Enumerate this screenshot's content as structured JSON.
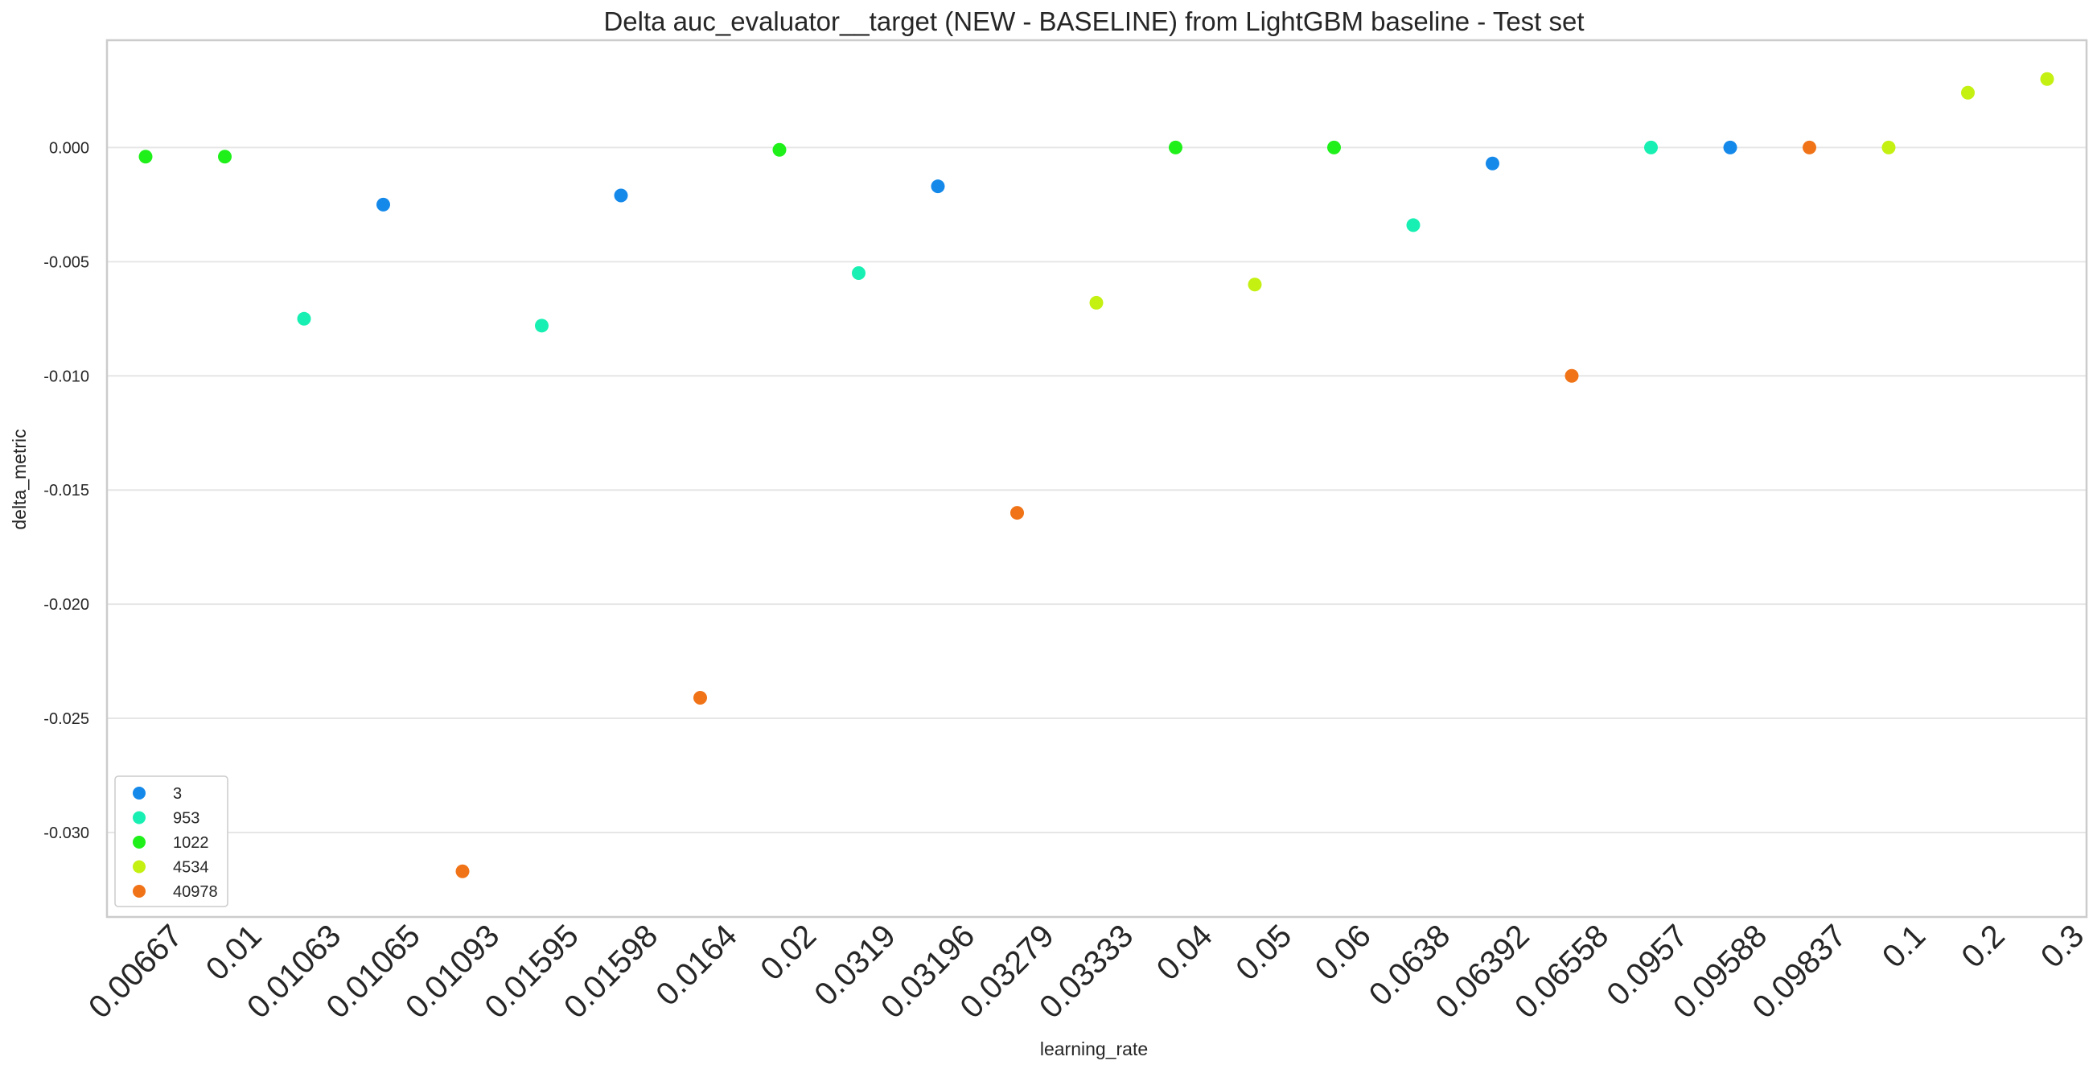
{
  "chart_data": {
    "type": "scatter",
    "title": "Delta auc_evaluator__target (NEW - BASELINE) from LightGBM baseline - Test set",
    "xlabel": "learning_rate",
    "ylabel": "delta_metric",
    "categories": [
      "0.00667",
      "0.01",
      "0.01063",
      "0.01065",
      "0.01093",
      "0.01595",
      "0.01598",
      "0.0164",
      "0.02",
      "0.0319",
      "0.03196",
      "0.03279",
      "0.03333",
      "0.04",
      "0.05",
      "0.06",
      "0.0638",
      "0.06392",
      "0.06558",
      "0.0957",
      "0.09588",
      "0.09837",
      "0.1",
      "0.2",
      "0.3"
    ],
    "yticks": [
      0.0,
      -0.005,
      -0.01,
      -0.015,
      -0.02,
      -0.025,
      -0.03
    ],
    "ytick_labels": [
      "0.000",
      "-0.005",
      "-0.010",
      "-0.015",
      "-0.020",
      "-0.025",
      "-0.030"
    ],
    "ylim": [
      -0.0337,
      0.0047
    ],
    "grid": true,
    "legend_position": "bottom-left",
    "series": [
      {
        "name": "3",
        "color": "#1589ea",
        "points": [
          {
            "x": "0.01065",
            "y": -0.0025
          },
          {
            "x": "0.01598",
            "y": -0.0021
          },
          {
            "x": "0.03196",
            "y": -0.0017
          },
          {
            "x": "0.06392",
            "y": -0.0007
          },
          {
            "x": "0.09588",
            "y": 0.0
          }
        ]
      },
      {
        "name": "953",
        "color": "#17f0b2",
        "points": [
          {
            "x": "0.01063",
            "y": -0.0075
          },
          {
            "x": "0.01595",
            "y": -0.0078
          },
          {
            "x": "0.0319",
            "y": -0.0055
          },
          {
            "x": "0.0638",
            "y": -0.0034
          },
          {
            "x": "0.0957",
            "y": 0.0
          }
        ]
      },
      {
        "name": "1022",
        "color": "#1ff01a",
        "points": [
          {
            "x": "0.00667",
            "y": -0.0004
          },
          {
            "x": "0.01",
            "y": -0.0004
          },
          {
            "x": "0.02",
            "y": -0.0001
          },
          {
            "x": "0.04",
            "y": 0.0
          },
          {
            "x": "0.06",
            "y": 0.0
          }
        ]
      },
      {
        "name": "4534",
        "color": "#c4f012",
        "points": [
          {
            "x": "0.03333",
            "y": -0.0068
          },
          {
            "x": "0.05",
            "y": -0.006
          },
          {
            "x": "0.1",
            "y": 0.0
          },
          {
            "x": "0.2",
            "y": 0.0024
          },
          {
            "x": "0.3",
            "y": 0.003
          }
        ]
      },
      {
        "name": "40978",
        "color": "#f07317",
        "points": [
          {
            "x": "0.01093",
            "y": -0.0317
          },
          {
            "x": "0.0164",
            "y": -0.0241
          },
          {
            "x": "0.03279",
            "y": -0.016
          },
          {
            "x": "0.06558",
            "y": -0.01
          },
          {
            "x": "0.09837",
            "y": 0.0
          }
        ]
      }
    ]
  }
}
